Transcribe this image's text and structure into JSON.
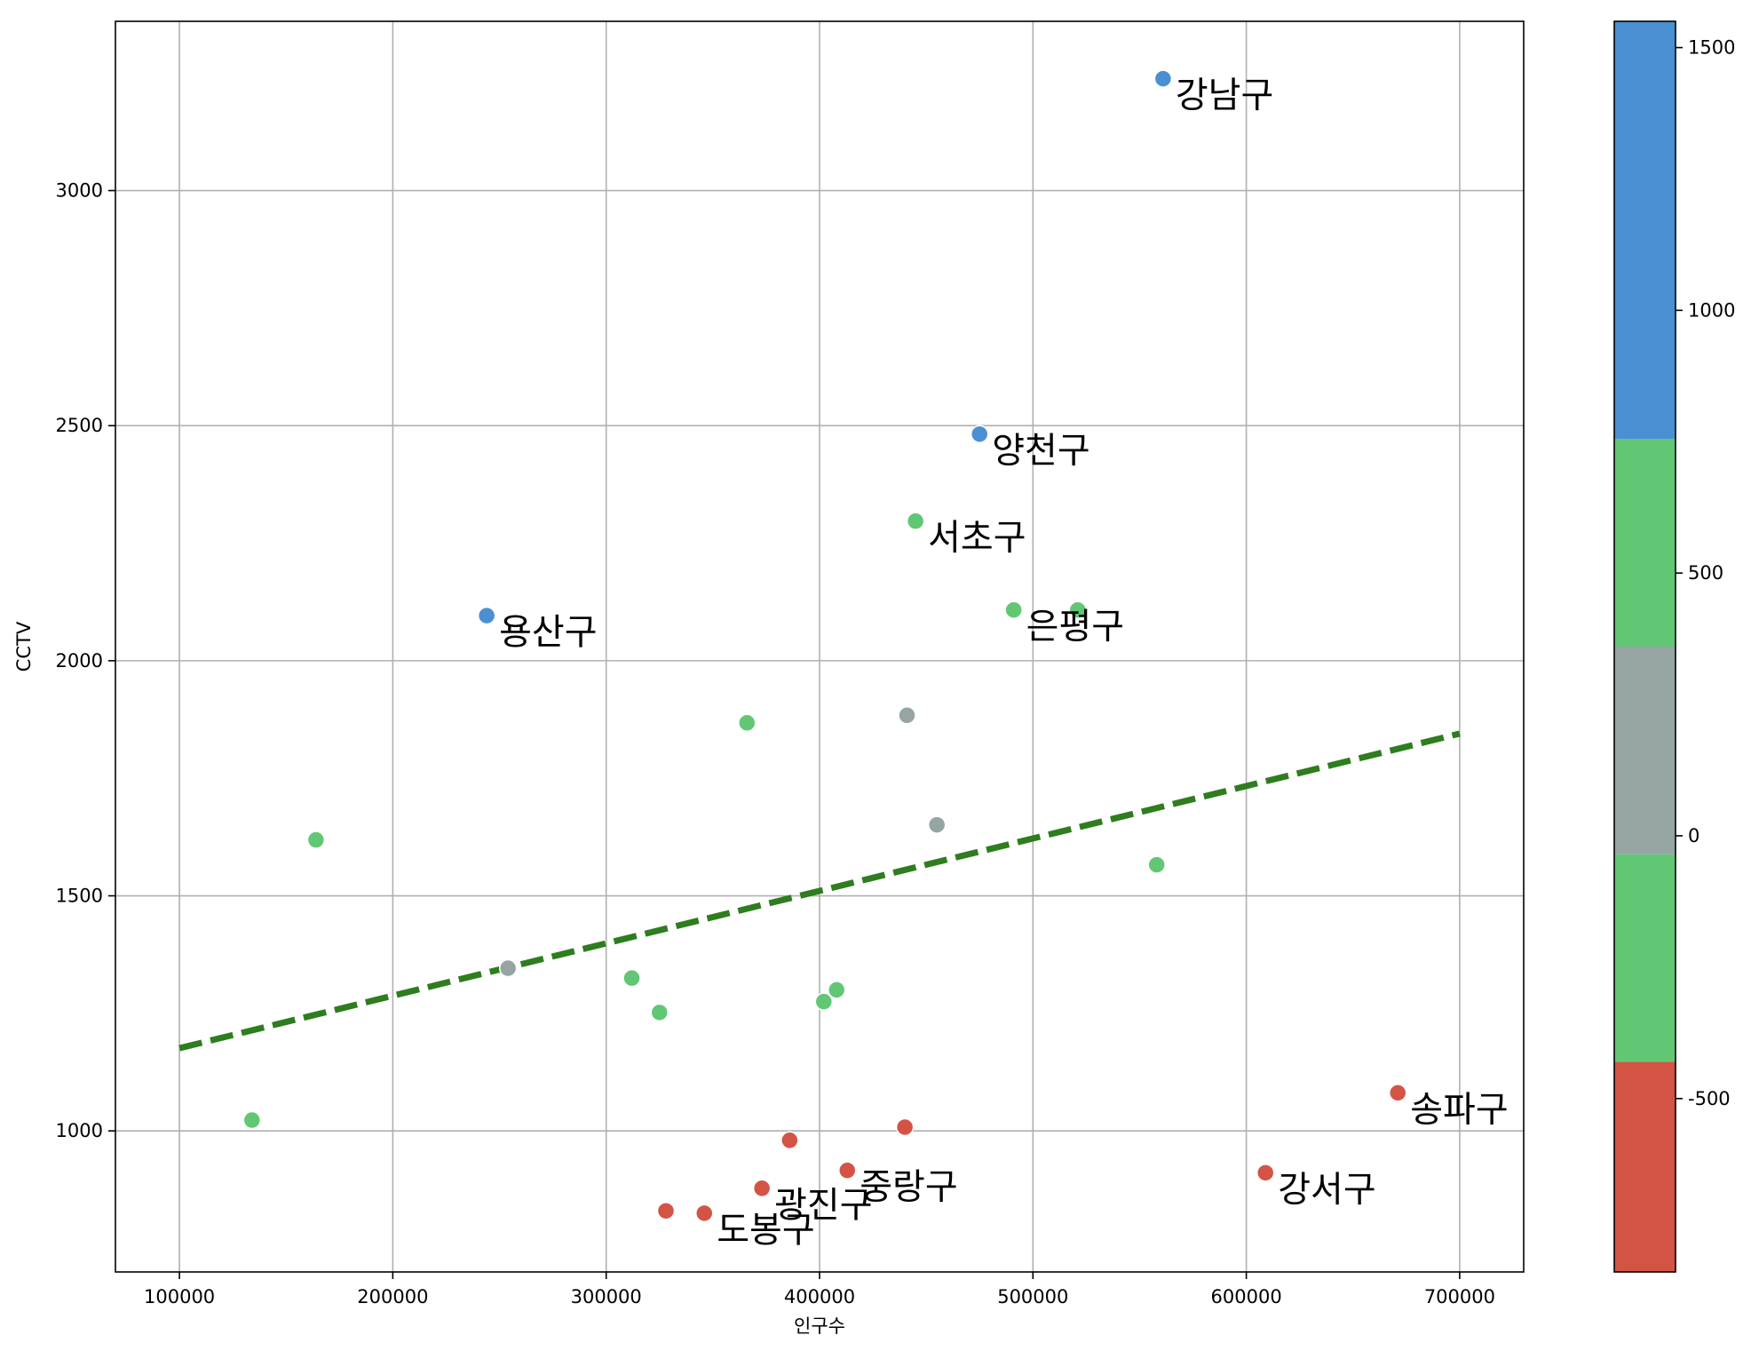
{
  "chart_data": {
    "type": "scatter",
    "title": "",
    "xlabel": "인구수",
    "ylabel": "CCTV",
    "xlim": [
      70000,
      730000
    ],
    "ylim": [
      700,
      3360
    ],
    "x_ticks": [
      100000,
      200000,
      300000,
      400000,
      500000,
      600000,
      700000
    ],
    "x_tick_labels": [
      "100000",
      "200000",
      "300000",
      "400000",
      "500000",
      "600000",
      "700000"
    ],
    "y_ticks": [
      1000,
      1500,
      2000,
      2500,
      3000
    ],
    "y_tick_labels": [
      "1000",
      "1500",
      "2000",
      "2500",
      "3000"
    ],
    "grid": true,
    "colorbar": {
      "vmin": -830,
      "vmax": 1550,
      "ticks": [
        -500,
        0,
        500,
        1000,
        1500
      ],
      "tick_labels": [
        "-500",
        "0",
        "500",
        "1000",
        "1500"
      ],
      "bands": [
        {
          "from": -830,
          "to": -430,
          "color": "#d35445"
        },
        {
          "from": -430,
          "to": -35,
          "color": "#62c774"
        },
        {
          "from": -35,
          "to": 360,
          "color": "#97a4a4"
        },
        {
          "from": 360,
          "to": 755,
          "color": "#62c774"
        },
        {
          "from": 755,
          "to": 1550,
          "color": "#4b8fd3"
        }
      ]
    },
    "points": [
      {
        "x": 561000,
        "y": 3238,
        "color": "#4b8fd3",
        "label": "강남구"
      },
      {
        "x": 475000,
        "y": 2482,
        "color": "#4b8fd3",
        "label": "양천구"
      },
      {
        "x": 244000,
        "y": 2096,
        "color": "#4b8fd3",
        "label": "용산구"
      },
      {
        "x": 445000,
        "y": 2297,
        "color": "#62c774",
        "label": "서초구"
      },
      {
        "x": 491000,
        "y": 2108,
        "color": "#62c774",
        "label": "은평구"
      },
      {
        "x": 521000,
        "y": 2108,
        "color": "#62c774",
        "label": ""
      },
      {
        "x": 366000,
        "y": 1868,
        "color": "#62c774",
        "label": ""
      },
      {
        "x": 164000,
        "y": 1619,
        "color": "#62c774",
        "label": ""
      },
      {
        "x": 558000,
        "y": 1566,
        "color": "#62c774",
        "label": ""
      },
      {
        "x": 312000,
        "y": 1325,
        "color": "#62c774",
        "label": ""
      },
      {
        "x": 325000,
        "y": 1252,
        "color": "#62c774",
        "label": ""
      },
      {
        "x": 402000,
        "y": 1275,
        "color": "#62c774",
        "label": ""
      },
      {
        "x": 408000,
        "y": 1300,
        "color": "#62c774",
        "label": ""
      },
      {
        "x": 134000,
        "y": 1023,
        "color": "#62c774",
        "label": ""
      },
      {
        "x": 441000,
        "y": 1884,
        "color": "#97a4a4",
        "label": ""
      },
      {
        "x": 455000,
        "y": 1651,
        "color": "#97a4a4",
        "label": ""
      },
      {
        "x": 254000,
        "y": 1346,
        "color": "#97a4a4",
        "label": ""
      },
      {
        "x": 671000,
        "y": 1081,
        "color": "#d35445",
        "label": "송파구"
      },
      {
        "x": 609000,
        "y": 911,
        "color": "#d35445",
        "label": "강서구"
      },
      {
        "x": 413000,
        "y": 916,
        "color": "#d35445",
        "label": "중랑구"
      },
      {
        "x": 373000,
        "y": 878,
        "color": "#d35445",
        "label": "광진구"
      },
      {
        "x": 346000,
        "y": 825,
        "color": "#d35445",
        "label": "도봉구"
      },
      {
        "x": 440000,
        "y": 1008,
        "color": "#d35445",
        "label": ""
      },
      {
        "x": 386000,
        "y": 980,
        "color": "#d35445",
        "label": ""
      },
      {
        "x": 328000,
        "y": 830,
        "color": "#d35445",
        "label": ""
      }
    ],
    "trend_line": {
      "x": [
        100000,
        700000
      ],
      "y": [
        1176,
        1845
      ],
      "color": "#2e7d1f",
      "style": "dashed"
    }
  }
}
